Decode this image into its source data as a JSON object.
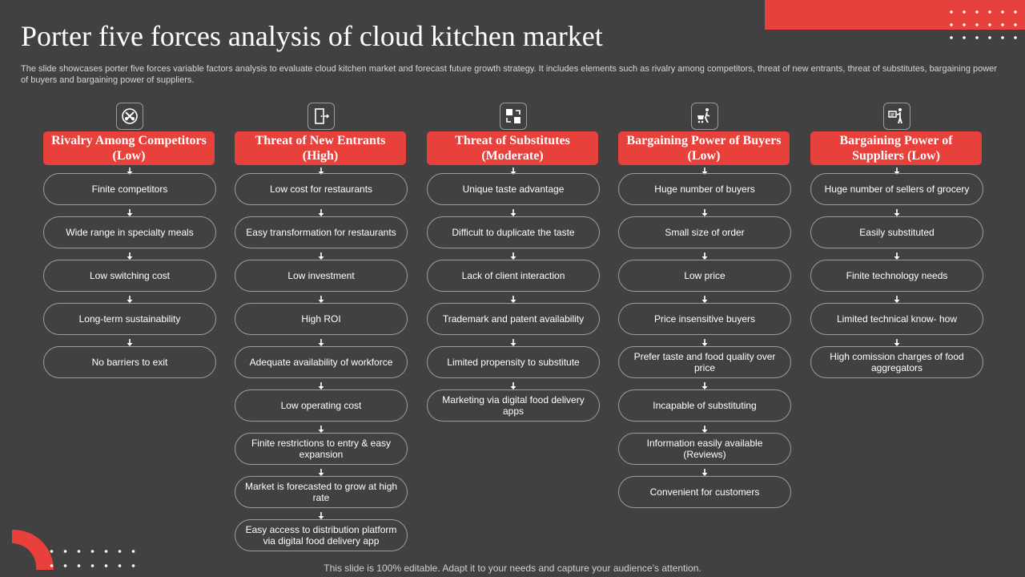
{
  "title": "Porter five forces analysis of cloud kitchen market",
  "description": "The slide showcases porter five forces variable factors analysis to evaluate cloud kitchen market and forecast future growth strategy. It includes elements such as rivalry among competitors, threat of new entrants, threat of substitutes, bargaining power of buyers and bargaining power of suppliers.",
  "columns": [
    {
      "icon": "competitors-icon",
      "header": "Rivalry Among Competitors (Low)",
      "items": [
        "Finite competitors",
        "Wide range in specialty meals",
        "Low switching cost",
        "Long-term sustainability",
        "No barriers to exit"
      ]
    },
    {
      "icon": "door-exit-icon",
      "header": "Threat of New Entrants (High)",
      "items": [
        "Low cost for restaurants",
        "Easy transformation for restaurants",
        "Low investment",
        "High ROI",
        "Adequate availability of workforce",
        "Low operating cost",
        "Finite restrictions to entry & easy expansion",
        "Market is forecasted to grow at high rate",
        "Easy access to distribution platform via digital food delivery app"
      ]
    },
    {
      "icon": "substitute-exchange-icon",
      "header": "Threat of Substitutes (Moderate)",
      "items": [
        "Unique taste advantage",
        "Difficult to duplicate the taste",
        "Lack of client interaction",
        "Trademark and patent availability",
        "Limited propensity to substitute",
        "Marketing via digital food delivery apps"
      ]
    },
    {
      "icon": "shopping-cart-person-icon",
      "header": "Bargaining Power of Buyers (Low)",
      "items": [
        "Huge number of buyers",
        "Small size of order",
        "Low price",
        "Price insensitive buyers",
        "Prefer taste and food quality over price",
        "Incapable of substituting",
        "Information easily available (Reviews)",
        "Convenient for customers"
      ]
    },
    {
      "icon": "supplier-board-icon",
      "header": "Bargaining Power of Suppliers (Low)",
      "items": [
        "Huge number of sellers of grocery",
        "Easily substituted",
        "Finite technology needs",
        "Limited technical know- how",
        "High comission charges of food aggregators"
      ]
    }
  ],
  "footer": "This slide is 100% editable. Adapt it to your needs and capture your audience’s attention.",
  "colors": {
    "background": "#414141",
    "accent": "#e8403a",
    "text": "#ffffff",
    "pill_border": "#9c9c9c"
  }
}
